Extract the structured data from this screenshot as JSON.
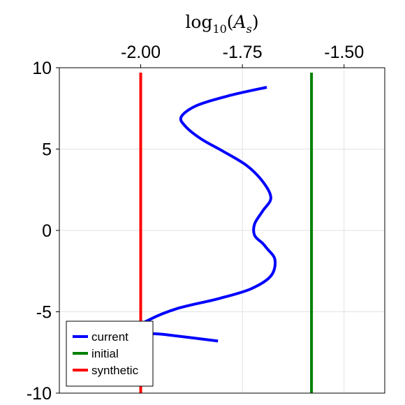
{
  "chart_data": {
    "type": "line",
    "title": "",
    "xlabel": {
      "prefix": "log",
      "sub": "10",
      "open": "(",
      "var": "A",
      "var_sub": "s",
      "close": ")"
    },
    "ylabel": "",
    "x_axis_position": "top",
    "xlim": [
      -2.2,
      -1.4
    ],
    "ylim": [
      -10,
      10
    ],
    "x_ticks": [
      -2.0,
      -1.75,
      -1.5
    ],
    "x_tick_labels": [
      "-2.00",
      "-1.75",
      "-1.50"
    ],
    "y_ticks": [
      10,
      5,
      0,
      -5,
      -10
    ],
    "y_tick_labels": [
      "10",
      "5",
      "0",
      "-5",
      "-10"
    ],
    "grid": true,
    "legend_position": "bottom-left",
    "series": [
      {
        "name": "current",
        "color": "#0000ff",
        "points": [
          [
            -1.69,
            8.8
          ],
          [
            -1.78,
            8.3
          ],
          [
            -1.86,
            7.7
          ],
          [
            -1.9,
            7.0
          ],
          [
            -1.89,
            6.4
          ],
          [
            -1.85,
            5.6
          ],
          [
            -1.8,
            4.9
          ],
          [
            -1.74,
            4.0
          ],
          [
            -1.7,
            3.0
          ],
          [
            -1.68,
            2.0
          ],
          [
            -1.7,
            1.2
          ],
          [
            -1.72,
            0.4
          ],
          [
            -1.72,
            -0.3
          ],
          [
            -1.7,
            -0.8
          ],
          [
            -1.69,
            -1.1
          ],
          [
            -1.67,
            -1.8
          ],
          [
            -1.68,
            -2.8
          ],
          [
            -1.73,
            -3.6
          ],
          [
            -1.81,
            -4.2
          ],
          [
            -1.91,
            -4.8
          ],
          [
            -1.98,
            -5.5
          ],
          [
            -2.02,
            -6.2
          ],
          [
            -1.94,
            -6.4
          ],
          [
            -1.81,
            -6.8
          ]
        ]
      },
      {
        "name": "initial",
        "color": "#008000",
        "points": [
          [
            -1.58,
            9.7
          ],
          [
            -1.58,
            -10
          ]
        ]
      },
      {
        "name": "synthetic",
        "color": "#ff0000",
        "points": [
          [
            -2.0,
            9.7
          ],
          [
            -2.0,
            -10
          ]
        ]
      }
    ]
  }
}
